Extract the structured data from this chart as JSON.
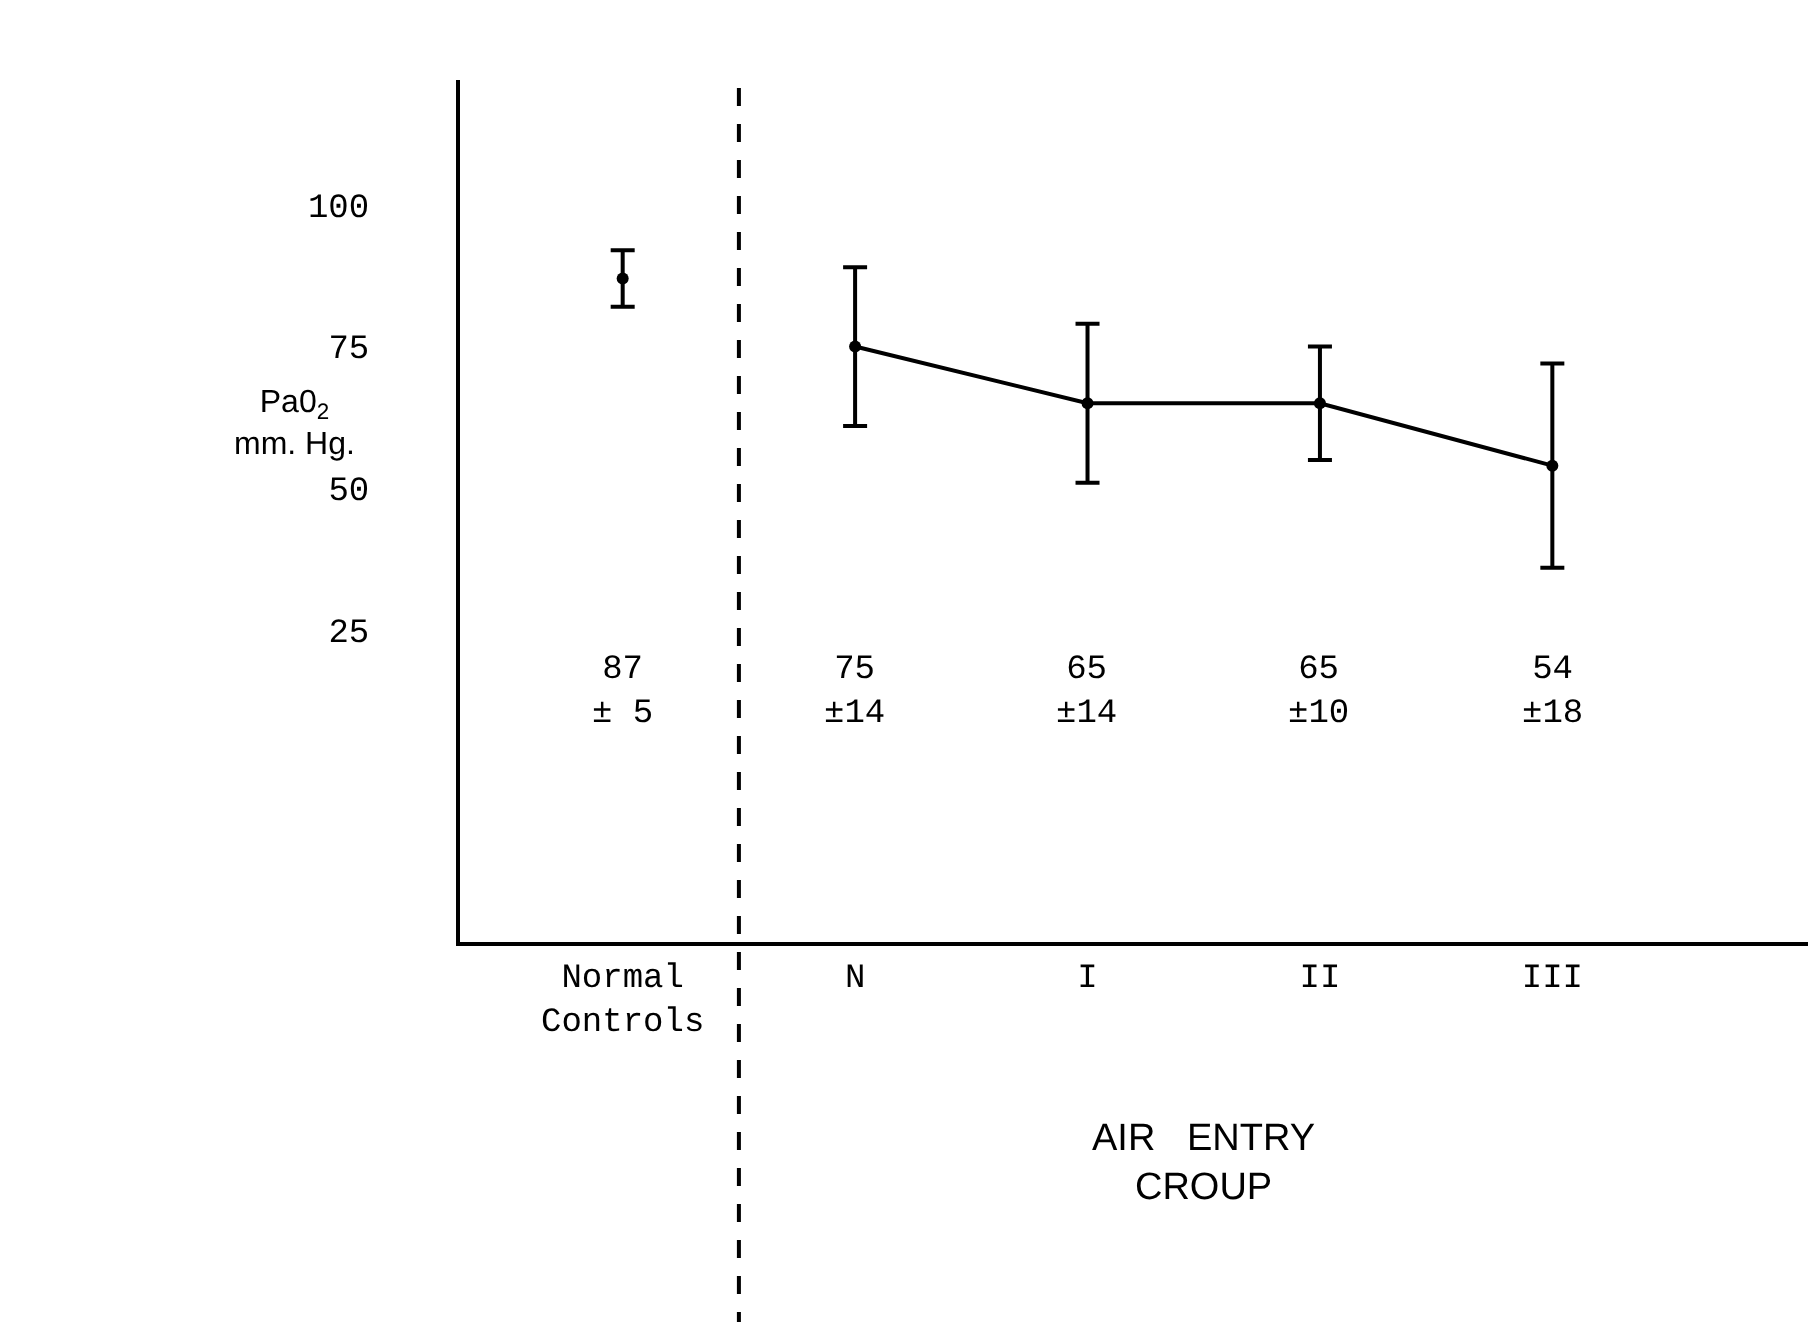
{
  "chart_data": {
    "type": "line",
    "categories": [
      "Normal\nControls",
      "N",
      "I",
      "II",
      "III"
    ],
    "series": [
      {
        "type": "scatter",
        "color": "#000000",
        "values": [
          87,
          null,
          null,
          null,
          null
        ],
        "errors": [
          5,
          null,
          null,
          null,
          null
        ]
      },
      {
        "color": "#000000",
        "values": [
          null,
          75,
          65,
          65,
          54
        ],
        "errors": [
          null,
          14,
          14,
          10,
          18
        ]
      }
    ],
    "annotations": [
      "87\n± 5",
      "75\n±14",
      "65\n±14",
      "65\n±10",
      "54\n±18"
    ],
    "xlabel": "AIR   ENTRY\nCROUP",
    "ylabel": "Pa0$_{2}$\nmm. Hg.",
    "ylim": [
      -30,
      122
    ],
    "yticks": [
      25,
      50,
      75,
      100
    ],
    "marker": "circle",
    "line_style": "solid"
  }
}
